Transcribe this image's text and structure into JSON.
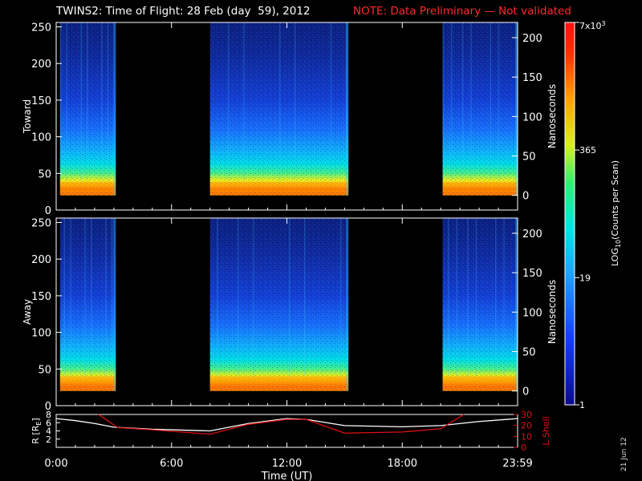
{
  "title": {
    "main": "TWINS2: Time of Flight: 28 Feb (day  59), 2012",
    "note": "NOTE: Data Preliminary — Not validated",
    "note_color": "#ff2a2a"
  },
  "date_stamp": "21 Jun 12",
  "chart_data": [
    {
      "type": "heatmap",
      "panel": "toward",
      "ylabel": "Toward",
      "y2label": "Nanoseconds",
      "ylim": [
        0,
        256
      ],
      "yticks": [
        0,
        50,
        100,
        150,
        200,
        250
      ],
      "y2ticks": [
        0,
        50,
        100,
        150,
        200
      ],
      "xlim": [
        0,
        24
      ],
      "data_intervals_ut": [
        [
          0.2,
          3.1
        ],
        [
          8.0,
          15.2
        ],
        [
          20.1,
          24.0
        ]
      ],
      "low_bin_floor": 20,
      "peak_band": [
        24,
        38
      ]
    },
    {
      "type": "heatmap",
      "panel": "away",
      "ylabel": "Away",
      "y2label": "Nanoseconds",
      "ylim": [
        0,
        256
      ],
      "yticks": [
        0,
        50,
        100,
        150,
        200,
        250
      ],
      "y2ticks": [
        0,
        50,
        100,
        150,
        200
      ],
      "xlim": [
        0,
        24
      ],
      "data_intervals_ut": [
        [
          0.2,
          3.1
        ],
        [
          8.0,
          15.2
        ],
        [
          20.1,
          24.0
        ]
      ],
      "low_bin_floor": 20,
      "peak_band": [
        26,
        40
      ]
    },
    {
      "type": "line",
      "panel": "orbit",
      "ylabel": "R [R",
      "ylabel_sub": "E",
      "ylabel_close": "]",
      "y2label": "L Shell",
      "ylim": [
        0,
        8
      ],
      "yticks": [
        0,
        2,
        4,
        6,
        8
      ],
      "y2lim": [
        0,
        30
      ],
      "y2ticks": [
        0,
        10,
        20,
        30
      ],
      "xlabel": "Time (UT)",
      "xticks": [
        "0:00",
        "6:00",
        "12:00",
        "18:00",
        "23:59"
      ],
      "xtick_values": [
        0,
        6,
        12,
        18,
        24
      ],
      "series": [
        {
          "color": "#ffffff",
          "axis": "left",
          "x": [
            0,
            1,
            2,
            3,
            5,
            8,
            10,
            12,
            13,
            15,
            18,
            20,
            22,
            24
          ],
          "y": [
            7.0,
            6.5,
            5.8,
            4.9,
            4.4,
            4.0,
            5.8,
            7.0,
            6.8,
            5.3,
            5.0,
            5.3,
            6.3,
            7.0
          ]
        },
        {
          "color": "#e01010",
          "axis": "right",
          "x": [
            2.2,
            3.2,
            5.0,
            8.0,
            10.0,
            12.0,
            13.0,
            15.0,
            18.0,
            20.0,
            21.2
          ],
          "y": [
            30,
            18,
            16,
            12,
            21,
            25.5,
            25.5,
            13,
            14,
            17,
            30
          ]
        }
      ]
    }
  ],
  "colorbar": {
    "label": "LOG",
    "label_sub": "10",
    "label_rest": "(Counts per Scan)",
    "ticks": [
      {
        "label": "7x10",
        "sup": "3",
        "value": 7000
      },
      {
        "label": "365",
        "sup": "",
        "value": 365
      },
      {
        "label": "19",
        "sup": "",
        "value": 19
      },
      {
        "label": "1",
        "sup": "",
        "value": 1
      }
    ],
    "range": [
      1,
      7000
    ],
    "scale": "log"
  }
}
